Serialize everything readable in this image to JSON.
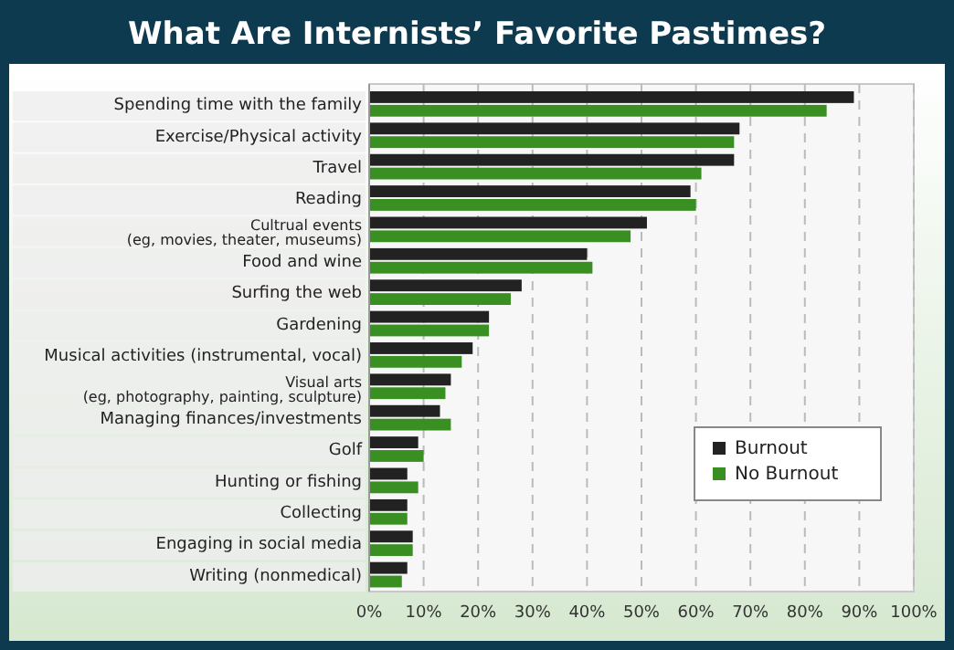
{
  "chart_data": {
    "type": "bar",
    "orientation": "horizontal",
    "title": "What Are Internists’ Favorite Pastimes?",
    "categories": [
      "Spending time with the family",
      "Exercise/Physical activity",
      "Travel",
      "Reading",
      "Cultrual events\n(eg, movies, theater, museums)",
      "Food and wine",
      "Surfing the web",
      "Gardening",
      "Musical activities (instrumental, vocal)",
      "Visual arts\n(eg, photography, painting, sculpture)",
      "Managing finances/investments",
      "Golf",
      "Hunting or fishing",
      "Collecting",
      "Engaging in social media",
      "Writing (nonmedical)"
    ],
    "series": [
      {
        "name": "Burnout",
        "color": "#222222",
        "values": [
          89,
          68,
          67,
          59,
          51,
          40,
          28,
          22,
          19,
          15,
          13,
          9,
          7,
          7,
          8,
          7
        ]
      },
      {
        "name": "No Burnout",
        "color": "#3a8f22",
        "values": [
          84,
          67,
          61,
          60,
          48,
          41,
          26,
          22,
          17,
          14,
          15,
          10,
          9,
          7,
          8,
          6
        ]
      }
    ],
    "xlim": [
      0,
      100
    ],
    "xticks": [
      {
        "value": 0,
        "label": "0%"
      },
      {
        "value": 10,
        "label": "10%"
      },
      {
        "value": 20,
        "label": "20%"
      },
      {
        "value": 30,
        "label": "30%"
      },
      {
        "value": 40,
        "label": "40%"
      },
      {
        "value": 50,
        "label": "50%"
      },
      {
        "value": 60,
        "label": "60%"
      },
      {
        "value": 70,
        "label": "70%"
      },
      {
        "value": 80,
        "label": "80%"
      },
      {
        "value": 90,
        "label": "90%"
      },
      {
        "value": 100,
        "label": "100%"
      }
    ],
    "grid": "x",
    "legend": "bottom right"
  }
}
